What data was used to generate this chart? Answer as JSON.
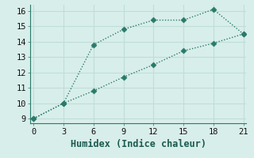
{
  "xlabel": "Humidex (Indice chaleur)",
  "line1_x": [
    0,
    3,
    6,
    9,
    12,
    15,
    18,
    21
  ],
  "line1_y": [
    9,
    10,
    13.8,
    14.8,
    15.4,
    15.4,
    16.1,
    14.5
  ],
  "line2_x": [
    0,
    3,
    6,
    9,
    12,
    15,
    18,
    21
  ],
  "line2_y": [
    9,
    10,
    10.8,
    11.7,
    12.5,
    13.4,
    13.9,
    14.5
  ],
  "line_color": "#2a7a6a",
  "bg_color": "#d8eeea",
  "grid_color": "#c0ddd8",
  "xlim": [
    -0.3,
    21.3
  ],
  "ylim": [
    8.7,
    16.4
  ],
  "xticks": [
    0,
    3,
    6,
    9,
    12,
    15,
    18,
    21
  ],
  "yticks": [
    9,
    10,
    11,
    12,
    13,
    14,
    15,
    16
  ],
  "markersize": 3.5,
  "linewidth": 1.0,
  "xlabel_fontsize": 8.5,
  "tick_fontsize": 7.5
}
